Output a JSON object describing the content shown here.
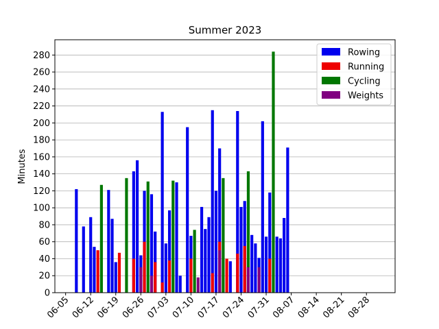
{
  "chart_data": {
    "type": "bar",
    "title": "Summer 2023",
    "xlabel": "",
    "ylabel": "Minutes",
    "xlim": [
      "2023-06-02",
      "2023-09-05"
    ],
    "ylim": [
      0,
      298
    ],
    "grid": "y",
    "legend_position": "top-right",
    "x_ticks": [
      "06-05",
      "06-12",
      "06-19",
      "06-26",
      "07-03",
      "07-10",
      "07-17",
      "07-24",
      "07-31",
      "08-07",
      "08-14",
      "08-21",
      "08-28"
    ],
    "x_tick_dates": [
      "2023-06-05",
      "2023-06-12",
      "2023-06-19",
      "2023-06-26",
      "2023-07-03",
      "2023-07-10",
      "2023-07-17",
      "2023-07-24",
      "2023-07-31",
      "2023-08-07",
      "2023-08-14",
      "2023-08-21",
      "2023-08-28"
    ],
    "y_ticks": [
      0,
      20,
      40,
      60,
      80,
      100,
      120,
      140,
      160,
      180,
      200,
      220,
      240,
      260,
      280
    ],
    "series": [
      {
        "name": "Rowing",
        "color": "#0000ee",
        "points": [
          {
            "x": "2023-06-08",
            "y": 122
          },
          {
            "x": "2023-06-10",
            "y": 78
          },
          {
            "x": "2023-06-12",
            "y": 89
          },
          {
            "x": "2023-06-13",
            "y": 54
          },
          {
            "x": "2023-06-17",
            "y": 121
          },
          {
            "x": "2023-06-18",
            "y": 87
          },
          {
            "x": "2023-06-19",
            "y": 36
          },
          {
            "x": "2023-06-24",
            "y": 143
          },
          {
            "x": "2023-06-25",
            "y": 156
          },
          {
            "x": "2023-06-26",
            "y": 44
          },
          {
            "x": "2023-06-27",
            "y": 120
          },
          {
            "x": "2023-06-29",
            "y": 116
          },
          {
            "x": "2023-06-30",
            "y": 72
          },
          {
            "x": "2023-07-02",
            "y": 213
          },
          {
            "x": "2023-07-03",
            "y": 58
          },
          {
            "x": "2023-07-04",
            "y": 97
          },
          {
            "x": "2023-07-06",
            "y": 130
          },
          {
            "x": "2023-07-07",
            "y": 20
          },
          {
            "x": "2023-07-09",
            "y": 195
          },
          {
            "x": "2023-07-10",
            "y": 67
          },
          {
            "x": "2023-07-13",
            "y": 101
          },
          {
            "x": "2023-07-14",
            "y": 75
          },
          {
            "x": "2023-07-15",
            "y": 89
          },
          {
            "x": "2023-07-16",
            "y": 215
          },
          {
            "x": "2023-07-17",
            "y": 120
          },
          {
            "x": "2023-07-18",
            "y": 170
          },
          {
            "x": "2023-07-21",
            "y": 37
          },
          {
            "x": "2023-07-23",
            "y": 214
          },
          {
            "x": "2023-07-24",
            "y": 101
          },
          {
            "x": "2023-07-25",
            "y": 108
          },
          {
            "x": "2023-07-27",
            "y": 68
          },
          {
            "x": "2023-07-28",
            "y": 58
          },
          {
            "x": "2023-07-29",
            "y": 41
          },
          {
            "x": "2023-07-30",
            "y": 202
          },
          {
            "x": "2023-07-31",
            "y": 66
          },
          {
            "x": "2023-08-01",
            "y": 118
          },
          {
            "x": "2023-08-03",
            "y": 66
          },
          {
            "x": "2023-08-04",
            "y": 64
          },
          {
            "x": "2023-08-05",
            "y": 88
          },
          {
            "x": "2023-08-06",
            "y": 171
          }
        ]
      },
      {
        "name": "Running",
        "color": "#ee0000",
        "points": [
          {
            "x": "2023-06-14",
            "y": 50
          },
          {
            "x": "2023-06-20",
            "y": 47
          },
          {
            "x": "2023-06-24",
            "y": 40
          },
          {
            "x": "2023-06-27",
            "y": 60
          },
          {
            "x": "2023-06-30",
            "y": 36
          },
          {
            "x": "2023-07-02",
            "y": 12
          },
          {
            "x": "2023-07-04",
            "y": 38
          },
          {
            "x": "2023-07-10",
            "y": 40
          },
          {
            "x": "2023-07-16",
            "y": 23
          },
          {
            "x": "2023-07-18",
            "y": 60
          },
          {
            "x": "2023-07-20",
            "y": 40
          },
          {
            "x": "2023-07-23",
            "y": 46
          },
          {
            "x": "2023-07-25",
            "y": 55
          },
          {
            "x": "2023-08-01",
            "y": 40
          }
        ]
      },
      {
        "name": "Cycling",
        "color": "#007700",
        "points": [
          {
            "x": "2023-06-15",
            "y": 127
          },
          {
            "x": "2023-06-22",
            "y": 135
          },
          {
            "x": "2023-06-28",
            "y": 131
          },
          {
            "x": "2023-07-05",
            "y": 132
          },
          {
            "x": "2023-07-11",
            "y": 74
          },
          {
            "x": "2023-07-19",
            "y": 135
          },
          {
            "x": "2023-07-26",
            "y": 143
          },
          {
            "x": "2023-08-02",
            "y": 284
          }
        ]
      },
      {
        "name": "Weights",
        "color": "#800080",
        "points": [
          {
            "x": "2023-06-26",
            "y": 30
          },
          {
            "x": "2023-06-29",
            "y": 20
          },
          {
            "x": "2023-07-12",
            "y": 18
          },
          {
            "x": "2023-07-18",
            "y": 50
          },
          {
            "x": "2023-07-26",
            "y": 30
          },
          {
            "x": "2023-07-29",
            "y": 30
          }
        ]
      }
    ]
  }
}
